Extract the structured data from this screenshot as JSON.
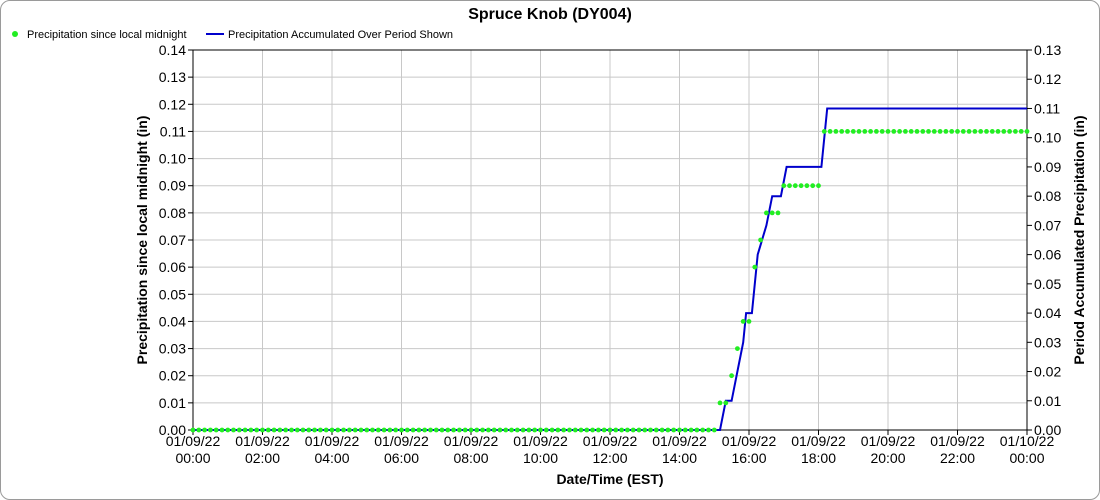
{
  "chart_data": {
    "type": "line",
    "title": "Spruce Knob (DY004)",
    "xlabel": "Date/Time (EST)",
    "ylabel_left": "Precipitation since local midnight (in)",
    "ylabel_right": "Period Accumulated Precipitation (in)",
    "ylim_left": [
      0,
      0.14
    ],
    "ylim_right": [
      0,
      0.13
    ],
    "grid": true,
    "legend_position": "top-left",
    "x_range": [
      "01/09/22 00:00",
      "01/10/22 00:00"
    ],
    "x_ticks": [
      {
        "date": "01/09/22",
        "time": "00:00"
      },
      {
        "date": "01/09/22",
        "time": "02:00"
      },
      {
        "date": "01/09/22",
        "time": "04:00"
      },
      {
        "date": "01/09/22",
        "time": "06:00"
      },
      {
        "date": "01/09/22",
        "time": "08:00"
      },
      {
        "date": "01/09/22",
        "time": "10:00"
      },
      {
        "date": "01/09/22",
        "time": "12:00"
      },
      {
        "date": "01/09/22",
        "time": "14:00"
      },
      {
        "date": "01/09/22",
        "time": "16:00"
      },
      {
        "date": "01/09/22",
        "time": "18:00"
      },
      {
        "date": "01/09/22",
        "time": "20:00"
      },
      {
        "date": "01/09/22",
        "time": "22:00"
      },
      {
        "date": "01/10/22",
        "time": "00:00"
      }
    ],
    "y_ticks_left": [
      "0.00",
      "0.01",
      "0.02",
      "0.03",
      "0.04",
      "0.05",
      "0.06",
      "0.07",
      "0.08",
      "0.09",
      "0.10",
      "0.11",
      "0.12",
      "0.13",
      "0.14"
    ],
    "y_ticks_right": [
      "0.00",
      "0.01",
      "0.02",
      "0.03",
      "0.04",
      "0.05",
      "0.06",
      "0.07",
      "0.08",
      "0.09",
      "0.10",
      "0.11",
      "0.12",
      "0.13"
    ],
    "series": [
      {
        "name": "Precipitation since local midnight",
        "axis": "left",
        "style": "points",
        "color": "#22ee22",
        "note_interval": "10-minute samples",
        "points": [
          {
            "time": "01/09/22 00:00",
            "value": 0.0
          },
          {
            "time": "01/09/22 15:00",
            "value": 0.0
          },
          {
            "time": "01/09/22 15:10",
            "value": 0.01
          },
          {
            "time": "01/09/22 15:20",
            "value": 0.01
          },
          {
            "time": "01/09/22 15:30",
            "value": 0.02
          },
          {
            "time": "01/09/22 15:40",
            "value": 0.03
          },
          {
            "time": "01/09/22 15:50",
            "value": 0.04
          },
          {
            "time": "01/09/22 16:00",
            "value": 0.04
          },
          {
            "time": "01/09/22 16:10",
            "value": 0.06
          },
          {
            "time": "01/09/22 16:20",
            "value": 0.07
          },
          {
            "time": "01/09/22 16:30",
            "value": 0.08
          },
          {
            "time": "01/09/22 16:50",
            "value": 0.08
          },
          {
            "time": "01/09/22 17:00",
            "value": 0.09
          },
          {
            "time": "01/09/22 18:00",
            "value": 0.09
          },
          {
            "time": "01/09/22 18:10",
            "value": 0.11
          },
          {
            "time": "01/10/22 00:00",
            "value": 0.11
          }
        ]
      },
      {
        "name": "Precipitation Accumulated Over Period Shown",
        "axis": "right",
        "style": "line",
        "color": "#0000cc",
        "points": [
          {
            "time": "01/09/22 00:00",
            "value": 0.0
          },
          {
            "time": "01/09/22 15:10",
            "value": 0.0
          },
          {
            "time": "01/09/22 15:20",
            "value": 0.01
          },
          {
            "time": "01/09/22 15:30",
            "value": 0.01
          },
          {
            "time": "01/09/22 15:40",
            "value": 0.02
          },
          {
            "time": "01/09/22 15:50",
            "value": 0.03
          },
          {
            "time": "01/09/22 15:55",
            "value": 0.04
          },
          {
            "time": "01/09/22 16:05",
            "value": 0.04
          },
          {
            "time": "01/09/22 16:15",
            "value": 0.06
          },
          {
            "time": "01/09/22 16:30",
            "value": 0.07
          },
          {
            "time": "01/09/22 16:40",
            "value": 0.08
          },
          {
            "time": "01/09/22 16:55",
            "value": 0.08
          },
          {
            "time": "01/09/22 17:05",
            "value": 0.09
          },
          {
            "time": "01/09/22 18:05",
            "value": 0.09
          },
          {
            "time": "01/09/22 18:15",
            "value": 0.11
          },
          {
            "time": "01/10/22 00:00",
            "value": 0.11
          }
        ]
      }
    ]
  }
}
